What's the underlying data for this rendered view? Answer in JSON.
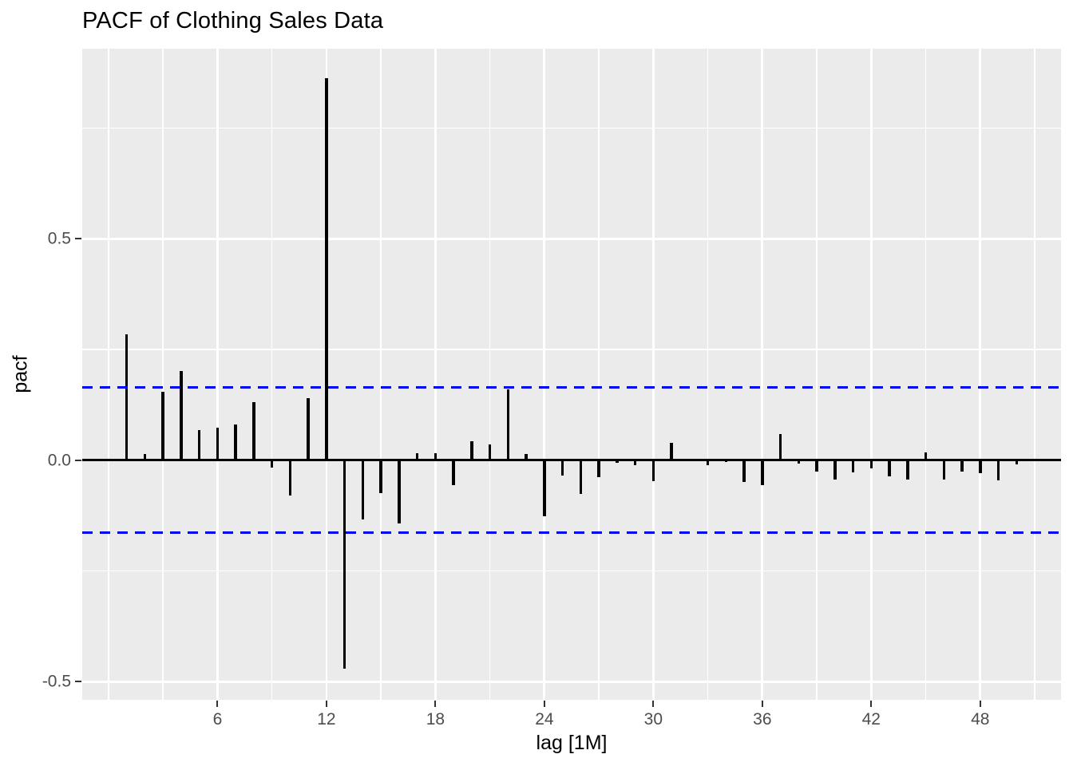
{
  "chart_data": {
    "type": "bar",
    "title": "PACF of Clothing Sales Data",
    "xlabel": "lag [1M]",
    "ylabel": "pacf",
    "x": [
      1,
      2,
      3,
      4,
      5,
      6,
      7,
      8,
      9,
      10,
      11,
      12,
      13,
      14,
      15,
      16,
      17,
      18,
      19,
      20,
      21,
      22,
      23,
      24,
      25,
      26,
      27,
      28,
      29,
      30,
      31,
      32,
      33,
      34,
      35,
      36,
      37,
      38,
      39,
      40,
      41,
      42,
      43,
      44,
      45,
      46,
      47,
      48,
      49,
      50
    ],
    "values": [
      0.284,
      0.014,
      0.154,
      0.202,
      0.068,
      0.073,
      0.08,
      0.131,
      -0.017,
      -0.079,
      0.14,
      0.862,
      -0.47,
      -0.133,
      -0.075,
      -0.142,
      0.015,
      0.016,
      -0.057,
      0.042,
      0.035,
      0.16,
      0.013,
      -0.127,
      -0.035,
      -0.077,
      -0.039,
      -0.006,
      -0.012,
      -0.047,
      0.039,
      -0.003,
      -0.011,
      -0.004,
      -0.05,
      -0.056,
      0.059,
      -0.007,
      -0.026,
      -0.043,
      -0.028,
      -0.018,
      -0.037,
      -0.043,
      0.018,
      -0.044,
      -0.026,
      -0.03,
      -0.046,
      -0.01
    ],
    "ci_upper": 0.164,
    "ci_lower": -0.164,
    "xlim": [
      -1.45,
      52.45
    ],
    "ylim": [
      -0.541,
      0.929
    ],
    "x_ticks": {
      "values": [
        6,
        12,
        18,
        24,
        30,
        36,
        42,
        48
      ],
      "labels": [
        "6",
        "12",
        "18",
        "24",
        "30",
        "36",
        "42",
        "48"
      ]
    },
    "y_ticks": {
      "values": [
        0.5,
        0.0,
        -0.5
      ],
      "labels": [
        "0.5",
        "0.0",
        "-0.5"
      ]
    },
    "x_minor_gridlines": [
      0,
      3,
      9,
      15,
      21,
      27,
      33,
      39,
      45,
      51
    ],
    "y_minor_gridlines": [
      0.75,
      0.25,
      -0.25
    ],
    "grid": "on",
    "legend": "none",
    "colors": {
      "bar": "#000000",
      "ci_line": "#0000FF",
      "panel_background": "#EBEBEB",
      "gridline": "#FFFFFF",
      "tick_label": "#4D4D4D",
      "axis_title": "#000000",
      "title": "#000000"
    }
  }
}
